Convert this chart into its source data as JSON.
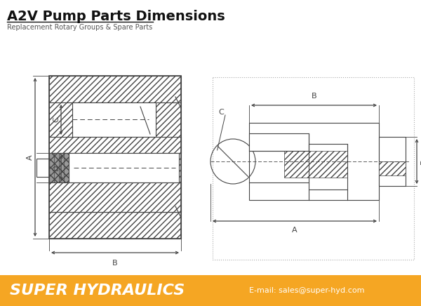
{
  "title": "A2V Pump Parts Dimensions",
  "subtitle": "Replacement Rotary Groups & Spare Parts",
  "footer_bg": "#F5A623",
  "footer_text": "SUPER HYDRAULICS",
  "footer_email": "E-mail: sales@super-hyd.com",
  "bg_color": "#FFFFFF",
  "drawing_color": "#444444",
  "title_color": "#111111",
  "orange_color": "#F5A623",
  "fig_w": 6.0,
  "fig_h": 4.36,
  "dpi": 100
}
